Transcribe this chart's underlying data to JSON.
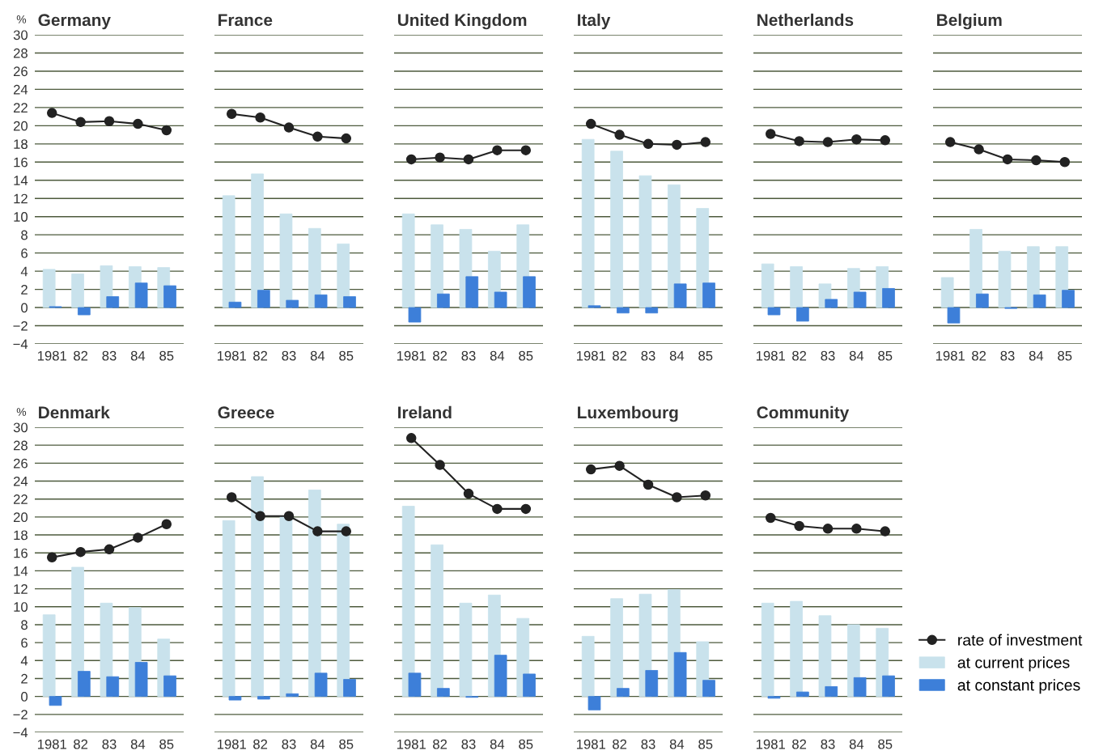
{
  "chart_data": [
    {
      "type": "bar",
      "title": "Germany",
      "ylabel": "%",
      "categories": [
        "1981",
        "82",
        "83",
        "84",
        "85"
      ],
      "ylim": [
        -4,
        30
      ],
      "yticks": [
        -4,
        -2,
        0,
        2,
        4,
        6,
        8,
        10,
        12,
        14,
        16,
        18,
        20,
        22,
        24,
        26,
        28,
        30
      ],
      "grid": "y",
      "marker": "circle",
      "series": [
        {
          "type": "line",
          "color": "#222222",
          "values": [
            21.4,
            20.4,
            20.5,
            20.2,
            19.5
          ]
        },
        {
          "color": "#c9e2ec",
          "values": [
            4.2,
            3.7,
            4.6,
            4.5,
            4.4
          ]
        },
        {
          "color": "#3d7fd9",
          "values": [
            0.1,
            -0.8,
            1.2,
            2.7,
            2.4
          ]
        }
      ]
    },
    {
      "type": "bar",
      "title": "France",
      "categories": [
        "1981",
        "82",
        "83",
        "84",
        "85"
      ],
      "ylim": [
        -4,
        30
      ],
      "yticks": [
        -4,
        -2,
        0,
        2,
        4,
        6,
        8,
        10,
        12,
        14,
        16,
        18,
        20,
        22,
        24,
        26,
        28,
        30
      ],
      "tick_labels": "x",
      "grid": "y",
      "marker": "circle",
      "series": [
        {
          "type": "line",
          "color": "#222222",
          "values": [
            21.3,
            20.9,
            19.8,
            18.8,
            18.6
          ]
        },
        {
          "color": "#c9e2ec",
          "values": [
            12.3,
            14.7,
            10.3,
            8.7,
            7.0
          ]
        },
        {
          "color": "#3d7fd9",
          "values": [
            0.6,
            1.9,
            0.8,
            1.4,
            1.2
          ]
        }
      ]
    },
    {
      "type": "bar",
      "title": "United Kingdom",
      "categories": [
        "1981",
        "82",
        "83",
        "84",
        "85"
      ],
      "ylim": [
        -4,
        30
      ],
      "yticks": [
        -4,
        -2,
        0,
        2,
        4,
        6,
        8,
        10,
        12,
        14,
        16,
        18,
        20,
        22,
        24,
        26,
        28,
        30
      ],
      "tick_labels": "x",
      "grid": "y",
      "marker": "circle",
      "series": [
        {
          "type": "line",
          "color": "#222222",
          "values": [
            16.3,
            16.5,
            16.3,
            17.3,
            17.3
          ]
        },
        {
          "color": "#c9e2ec",
          "values": [
            10.3,
            9.1,
            8.6,
            6.2,
            9.1
          ]
        },
        {
          "color": "#3d7fd9",
          "values": [
            -1.6,
            1.5,
            3.4,
            1.7,
            3.4
          ]
        }
      ]
    },
    {
      "type": "bar",
      "title": "Italy",
      "categories": [
        "1981",
        "82",
        "83",
        "84",
        "85"
      ],
      "ylim": [
        -4,
        30
      ],
      "yticks": [
        -4,
        -2,
        0,
        2,
        4,
        6,
        8,
        10,
        12,
        14,
        16,
        18,
        20,
        22,
        24,
        26,
        28,
        30
      ],
      "tick_labels": "x",
      "grid": "y",
      "marker": "circle",
      "series": [
        {
          "type": "line",
          "color": "#222222",
          "values": [
            20.2,
            19.0,
            18.0,
            17.9,
            18.2
          ]
        },
        {
          "color": "#c9e2ec",
          "values": [
            18.5,
            17.2,
            14.5,
            13.5,
            10.9
          ]
        },
        {
          "color": "#3d7fd9",
          "values": [
            0.2,
            -0.6,
            -0.6,
            2.6,
            2.7
          ]
        }
      ]
    },
    {
      "type": "bar",
      "title": "Netherlands",
      "categories": [
        "1981",
        "82",
        "83",
        "84",
        "85"
      ],
      "ylim": [
        -4,
        30
      ],
      "yticks": [
        -4,
        -2,
        0,
        2,
        4,
        6,
        8,
        10,
        12,
        14,
        16,
        18,
        20,
        22,
        24,
        26,
        28,
        30
      ],
      "tick_labels": "x",
      "grid": "y",
      "marker": "circle",
      "series": [
        {
          "type": "line",
          "color": "#222222",
          "values": [
            19.1,
            18.3,
            18.2,
            18.5,
            18.4
          ]
        },
        {
          "color": "#c9e2ec",
          "values": [
            4.8,
            4.5,
            2.6,
            4.3,
            4.5
          ]
        },
        {
          "color": "#3d7fd9",
          "values": [
            -0.8,
            -1.5,
            0.9,
            1.7,
            2.1
          ]
        }
      ]
    },
    {
      "type": "bar",
      "title": "Belgium",
      "categories": [
        "1981",
        "82",
        "83",
        "84",
        "85"
      ],
      "ylim": [
        -4,
        30
      ],
      "yticks": [
        -4,
        -2,
        0,
        2,
        4,
        6,
        8,
        10,
        12,
        14,
        16,
        18,
        20,
        22,
        24,
        26,
        28,
        30
      ],
      "tick_labels": "x",
      "grid": "y",
      "marker": "circle",
      "series": [
        {
          "type": "line",
          "color": "#222222",
          "values": [
            18.2,
            17.4,
            16.3,
            16.2,
            16.0
          ]
        },
        {
          "color": "#c9e2ec",
          "values": [
            3.3,
            8.6,
            6.2,
            6.7,
            6.7
          ]
        },
        {
          "color": "#3d7fd9",
          "values": [
            -1.7,
            1.5,
            -0.1,
            1.4,
            1.9
          ]
        }
      ]
    },
    {
      "type": "bar",
      "title": "Denmark",
      "ylabel": "%",
      "categories": [
        "1981",
        "82",
        "83",
        "84",
        "85"
      ],
      "ylim": [
        -4,
        30
      ],
      "yticks": [
        -4,
        -2,
        0,
        2,
        4,
        6,
        8,
        10,
        12,
        14,
        16,
        18,
        20,
        22,
        24,
        26,
        28,
        30
      ],
      "grid": "y",
      "marker": "circle",
      "series": [
        {
          "type": "line",
          "color": "#222222",
          "values": [
            15.5,
            16.1,
            16.4,
            17.7,
            19.2
          ]
        },
        {
          "color": "#c9e2ec",
          "values": [
            9.1,
            14.4,
            10.4,
            9.9,
            6.4
          ]
        },
        {
          "color": "#3d7fd9",
          "values": [
            -1.0,
            2.8,
            2.2,
            3.8,
            2.3
          ]
        }
      ]
    },
    {
      "type": "bar",
      "title": "Greece",
      "categories": [
        "1981",
        "82",
        "83",
        "84",
        "85"
      ],
      "ylim": [
        -4,
        30
      ],
      "yticks": [
        -4,
        -2,
        0,
        2,
        4,
        6,
        8,
        10,
        12,
        14,
        16,
        18,
        20,
        22,
        24,
        26,
        28,
        30
      ],
      "tick_labels": "x",
      "grid": "y",
      "marker": "circle",
      "series": [
        {
          "type": "line",
          "color": "#222222",
          "values": [
            22.2,
            20.1,
            20.1,
            18.4,
            18.4
          ]
        },
        {
          "color": "#c9e2ec",
          "values": [
            19.6,
            24.5,
            20.1,
            23.0,
            19.2
          ]
        },
        {
          "color": "#3d7fd9",
          "values": [
            -0.4,
            -0.3,
            0.3,
            2.6,
            1.9
          ]
        }
      ]
    },
    {
      "type": "bar",
      "title": "Ireland",
      "categories": [
        "1981",
        "82",
        "83",
        "84",
        "85"
      ],
      "ylim": [
        -4,
        30
      ],
      "yticks": [
        -4,
        -2,
        0,
        2,
        4,
        6,
        8,
        10,
        12,
        14,
        16,
        18,
        20,
        22,
        24,
        26,
        28,
        30
      ],
      "tick_labels": "x",
      "grid": "y",
      "marker": "circle",
      "series": [
        {
          "type": "line",
          "color": "#222222",
          "values": [
            28.8,
            25.8,
            22.6,
            20.9,
            20.9
          ]
        },
        {
          "color": "#c9e2ec",
          "values": [
            21.2,
            16.9,
            10.4,
            11.3,
            8.7
          ]
        },
        {
          "color": "#3d7fd9",
          "values": [
            2.6,
            0.9,
            -0.1,
            4.6,
            2.5
          ]
        }
      ]
    },
    {
      "type": "bar",
      "title": "Luxembourg",
      "categories": [
        "1981",
        "82",
        "83",
        "84",
        "85"
      ],
      "ylim": [
        -4,
        30
      ],
      "yticks": [
        -4,
        -2,
        0,
        2,
        4,
        6,
        8,
        10,
        12,
        14,
        16,
        18,
        20,
        22,
        24,
        26,
        28,
        30
      ],
      "tick_labels": "x",
      "grid": "y",
      "marker": "circle",
      "series": [
        {
          "type": "line",
          "color": "#222222",
          "values": [
            25.3,
            25.7,
            23.6,
            22.2,
            22.4
          ]
        },
        {
          "color": "#c9e2ec",
          "values": [
            6.7,
            10.9,
            11.4,
            11.9,
            6.1
          ]
        },
        {
          "color": "#3d7fd9",
          "values": [
            -1.5,
            0.9,
            2.9,
            4.9,
            1.8
          ]
        }
      ]
    },
    {
      "type": "bar",
      "title": "Community",
      "categories": [
        "1981",
        "82",
        "83",
        "84",
        "85"
      ],
      "ylim": [
        -4,
        30
      ],
      "yticks": [
        -4,
        -2,
        0,
        2,
        4,
        6,
        8,
        10,
        12,
        14,
        16,
        18,
        20,
        22,
        24,
        26,
        28,
        30
      ],
      "tick_labels": "x",
      "grid": "y",
      "marker": "circle",
      "legend": "right",
      "series": [
        {
          "type": "line",
          "name": "rate of investment",
          "color": "#222222",
          "values": [
            19.9,
            19.0,
            18.7,
            18.7,
            18.4
          ]
        },
        {
          "name": "at current prices",
          "color": "#c9e2ec",
          "values": [
            10.4,
            10.6,
            9.0,
            8.0,
            7.6
          ]
        },
        {
          "name": "at constant prices",
          "color": "#3d7fd9",
          "values": [
            -0.2,
            0.5,
            1.1,
            2.1,
            2.3
          ]
        }
      ]
    }
  ]
}
